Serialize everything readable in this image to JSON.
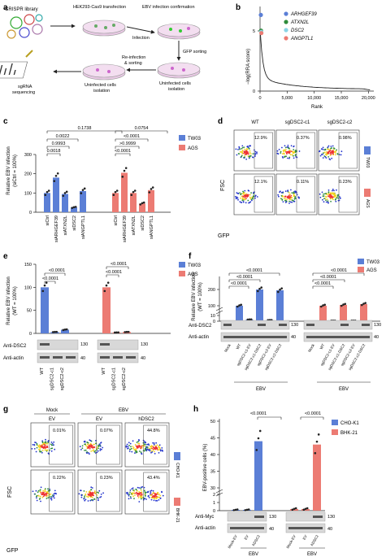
{
  "colors": {
    "blue": "#5b7fd6",
    "red": "#ec7b73",
    "green": "#2e8b3b",
    "cyan": "#8ad4e6",
    "dense_red": "#e33",
    "dense_yellow": "#f2d21b",
    "scatter_blue": "#2233cc"
  },
  "panel_a": {
    "label": "a",
    "crispr_library": "CRISPR library",
    "transfection": "HEK293-Cas9 transfection",
    "ebv_confirm": "EBV infection confirmation",
    "infection": "Infection",
    "gfp_sorting": "GFP sorting",
    "reinfection_1": "Re-infection",
    "reinfection_2": "& sorting",
    "uninf1_a": "Uninfected cells",
    "uninf1_b": "isolation",
    "uninf2_a": "Uninfected cells",
    "uninf2_b": "isolation",
    "sgrna_1": "sgRNA",
    "sgrna_2": "sequencing"
  },
  "panel_b": {
    "label": "b",
    "ylabel": "−log(RRA score)",
    "xlabel": "Rank",
    "legend": [
      "ARHGEF39",
      "ATXN2L",
      "DSC2",
      "ANGPTL1"
    ],
    "xticks": [
      "0",
      "5,000",
      "10,000",
      "15,000",
      "20,000"
    ],
    "yticks": [
      "0",
      "5"
    ]
  },
  "panel_c": {
    "label": "c",
    "ylabel_1": "Relative EBV infection",
    "ylabel_2": "(siCtrl = 100%)",
    "yticks": [
      "0",
      "100",
      "200",
      "300"
    ],
    "legend": [
      "TW03",
      "AGS"
    ],
    "categories": [
      "siCtrl",
      "siARHGEF39",
      "siATXN2L",
      "siDSC2",
      "siANGPTL1"
    ],
    "pvals_left": [
      "0.1738",
      "0.0022",
      "0.9993",
      "0.0018"
    ],
    "pvals_right": [
      "0.0754",
      "<0.0001",
      ">0.9999",
      "<0.0001"
    ]
  },
  "panel_d": {
    "label": "d",
    "cols": [
      "WT",
      "sgDSC2-c1",
      "sgDSC2-c2"
    ],
    "rows": [
      "TW03",
      "AGS"
    ],
    "pct": [
      [
        "12.9%",
        "0.37%",
        "0.98%"
      ],
      [
        "12.1%",
        "0.11%",
        "0.23%"
      ]
    ],
    "ylabel": "FSC",
    "xlabel": "GFP"
  },
  "panel_e": {
    "label": "e",
    "ylabel_1": "Relative EBV infection",
    "ylabel_2": "(WT = 100%)",
    "yticks": [
      "0",
      "50",
      "100",
      "150"
    ],
    "legend": [
      "TW03",
      "AGS"
    ],
    "pvals": [
      "<0.0001",
      "<0.0001",
      "<0.0001",
      "<0.0001"
    ],
    "blot_dsc2": "Anti-DSC2",
    "blot_actin": "Anti-actin",
    "mw_130": "130",
    "mw_40": "40",
    "lanes": [
      "WT",
      "sgDSC2-c1",
      "sgDSC2-c2"
    ]
  },
  "panel_f": {
    "label": "f",
    "ylabel_1": "Relative EBV infection",
    "ylabel_2": "(WT = 100%)",
    "yticks": [
      "0",
      "10",
      "100",
      "200"
    ],
    "legend": [
      "TW03",
      "AGS"
    ],
    "pvals": [
      "<0.0001",
      "<0.0001",
      "<0.0001",
      "<0.0001",
      "<0.0001",
      "<0.0001"
    ],
    "blot_dsc2": "Anti-DSC2",
    "blot_actin": "Anti-actin",
    "mw_130": "130",
    "mw_40": "40",
    "lanes": [
      "Mock",
      "WT",
      "sgDSC2-c1-EV",
      "sgDSC2-c1-DSC2",
      "sgDSC2-c2-EV",
      "sgDSC2-c2-DSC2"
    ],
    "ebv": "EBV"
  },
  "panel_g": {
    "label": "g",
    "mock": "Mock",
    "ebv": "EBV",
    "cols": [
      "EV",
      "EV",
      "hDSC2"
    ],
    "rows": [
      "CHO-K1",
      "BHK-21"
    ],
    "pct": [
      [
        "0.01%",
        "0.07%",
        "44.8%"
      ],
      [
        "0.22%",
        "0.23%",
        "43.4%"
      ]
    ],
    "ylabel": "FSC",
    "xlabel": "GFP"
  },
  "panel_h": {
    "label": "h",
    "ylabel": "EBV-positive cells (%)",
    "yticks": [
      "0",
      "1",
      "2",
      "30",
      "35",
      "40",
      "45",
      "50"
    ],
    "legend": [
      "CHO-K1",
      "BHK-21"
    ],
    "pvals": [
      "<0.0001",
      "<0.0001"
    ],
    "blot_myc": "Anti-Myc",
    "blot_actin": "Anti-actin",
    "mw_130": "130",
    "mw_40": "40",
    "lanes": [
      "Mock-EV",
      "EV",
      "hDSC2"
    ],
    "ebv": "EBV"
  },
  "chart_data": [
    {
      "type": "line",
      "panel": "b",
      "xlabel": "Rank",
      "ylabel": "−log(RRA score)",
      "xlim": [
        0,
        21000
      ],
      "ylim": [
        0,
        7
      ],
      "highlight": [
        {
          "name": "ARHGEF39",
          "x": 1,
          "y": 6.3
        },
        {
          "name": "ATXN2L",
          "x": 2,
          "y": 5.0
        },
        {
          "name": "DSC2",
          "x": 3,
          "y": 4.9
        },
        {
          "name": "ANGPTL1",
          "x": 4,
          "y": 4.8
        }
      ]
    },
    {
      "type": "bar",
      "panel": "c",
      "categories": [
        "siCtrl",
        "siARHGEF39",
        "siATXN2L",
        "siDSC2",
        "siANGPTL1"
      ],
      "ylim": [
        0,
        300
      ],
      "series": [
        {
          "name": "TW03",
          "values": [
            100,
            180,
            95,
            25,
            110
          ]
        },
        {
          "name": "AGS",
          "values": [
            100,
            205,
            100,
            45,
            115
          ]
        }
      ]
    },
    {
      "type": "bar",
      "panel": "e",
      "categories": [
        "WT",
        "sgDSC2-c1",
        "sgDSC2-c2"
      ],
      "ylim": [
        0,
        150
      ],
      "series": [
        {
          "name": "TW03",
          "values": [
            100,
            3,
            8
          ]
        },
        {
          "name": "AGS",
          "values": [
            100,
            2,
            3
          ]
        }
      ]
    },
    {
      "type": "bar",
      "panel": "f",
      "categories": [
        "Mock",
        "WT",
        "sgDSC2-c1-EV",
        "sgDSC2-c1-DSC2",
        "sgDSC2-c2-EV",
        "sgDSC2-c2-DSC2"
      ],
      "series": [
        {
          "name": "TW03",
          "values": [
            0,
            100,
            3,
            200,
            2,
            195
          ]
        },
        {
          "name": "AGS",
          "values": [
            0,
            100,
            1,
            105,
            1,
            110
          ]
        }
      ]
    },
    {
      "type": "bar",
      "panel": "h",
      "categories": [
        "Mock-EV",
        "EV",
        "hDSC2"
      ],
      "series": [
        {
          "name": "CHO-K1",
          "values": [
            0.1,
            0.1,
            44
          ]
        },
        {
          "name": "BHK-21",
          "values": [
            0.2,
            0.2,
            43
          ]
        }
      ]
    }
  ]
}
